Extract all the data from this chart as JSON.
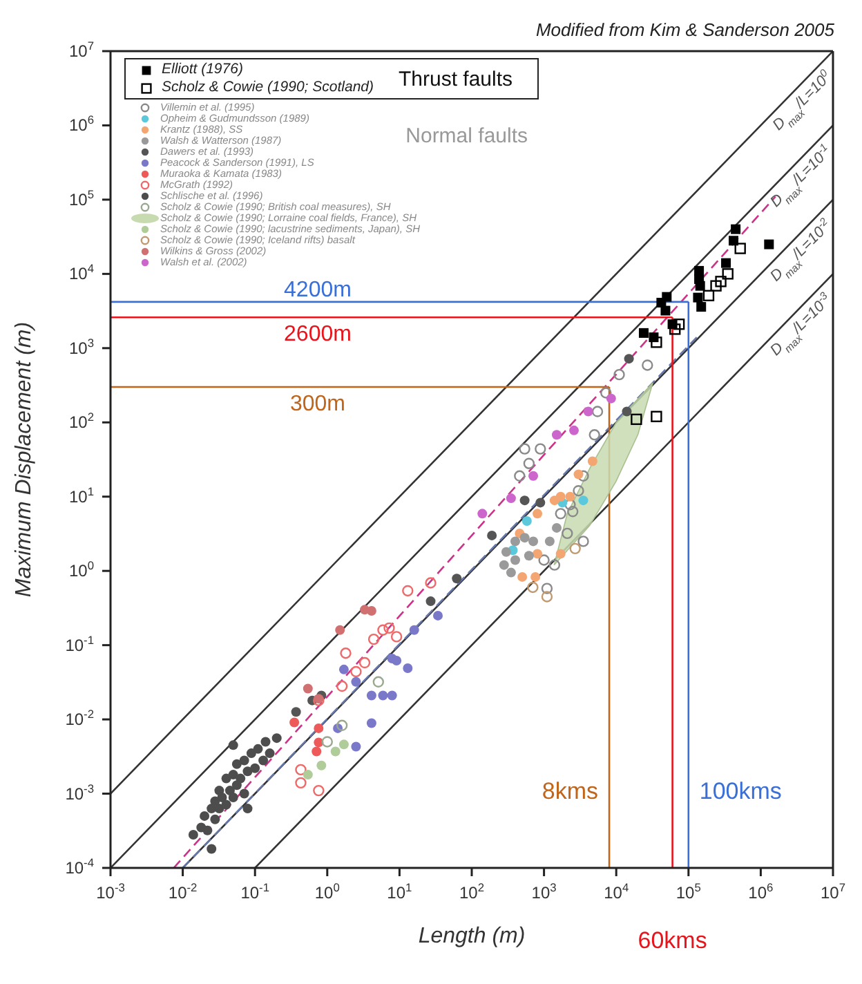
{
  "chart_data": {
    "type": "scatter",
    "xlabel": "Length (m)",
    "ylabel": "Maximum Displacement (m)",
    "log": "xy",
    "legend": "top left",
    "xlim": [
      0.001,
      10000000
    ],
    "ylim": [
      0.0001,
      10000000
    ],
    "xticks": [
      {
        "value": 0.001,
        "label": "10$^{-3}$"
      },
      {
        "value": 0.01,
        "label": "10$^{-2}$"
      },
      {
        "value": 0.1,
        "label": "10$^{-1}$"
      },
      {
        "value": 1,
        "label": "10$^{0}$"
      },
      {
        "value": 10,
        "label": "10$^{1}$"
      },
      {
        "value": 100,
        "label": "10$^{2}$"
      },
      {
        "value": 1000,
        "label": "10$^{3}$"
      },
      {
        "value": 10000,
        "label": "10$^{4}$"
      },
      {
        "value": 100000,
        "label": "10$^{5}$"
      },
      {
        "value": 1000000,
        "label": "10$^{6}$"
      },
      {
        "value": 10000000,
        "label": "10$^{7}$"
      }
    ],
    "yticks": [
      {
        "value": 0.0001,
        "label": "10$^{-4}$"
      },
      {
        "value": 0.001,
        "label": "10$^{-3}$"
      },
      {
        "value": 0.01,
        "label": "10$^{-2}$"
      },
      {
        "value": 0.1,
        "label": "10$^{-1}$"
      },
      {
        "value": 1,
        "label": "10$^{0}$"
      },
      {
        "value": 10,
        "label": "10$^{1}$"
      },
      {
        "value": 100,
        "label": "10$^{2}$"
      },
      {
        "value": 1000,
        "label": "10$^{3}$"
      },
      {
        "value": 10000,
        "label": "10$^{4}$"
      },
      {
        "value": 100000,
        "label": "10$^{5}$"
      },
      {
        "value": 1000000,
        "label": "10$^{6}$"
      },
      {
        "value": 10000000,
        "label": "10$^{7}$"
      }
    ],
    "annotations": [
      "Modified from Kim & Sanderson 2005",
      "Thrust faults",
      "Normal faults"
    ],
    "series": [
      {
        "name": "Elliott (1976)",
        "color": "#000000",
        "marker": "square",
        "x": [
          450000,
          420000,
          1300000,
          330000,
          140000,
          140000,
          145000,
          135000,
          150000,
          50000,
          42000,
          48000,
          60000,
          24000,
          33000
        ],
        "values": [
          40000,
          28000,
          25000,
          14000,
          11000,
          8500,
          6900,
          4800,
          3600,
          4900,
          4100,
          3200,
          2100,
          1600,
          1400
        ]
      },
      {
        "name": "Scholz & Cowie (1990; Scotland)",
        "color": "#000000",
        "marker": "square",
        "x": [
          520000,
          350000,
          280000,
          240000,
          190000,
          74000,
          65000,
          36000,
          36000,
          19000
        ],
        "values": [
          22000,
          10000,
          7900,
          6900,
          5100,
          2100,
          1800,
          1200,
          120,
          110
        ]
      },
      {
        "name": "Villemin et al. (1995)",
        "color": "#8a8a8a",
        "marker": "circle",
        "x": [
          460,
          620,
          890,
          1700,
          2300,
          3000,
          3500,
          5000,
          5500,
          7200,
          11000,
          27000,
          1000,
          1400,
          1100,
          3500,
          2100,
          2500,
          540
        ],
        "values": [
          19,
          28,
          44,
          5.9,
          7.8,
          12,
          19,
          68,
          140,
          250,
          440,
          590,
          1.4,
          1.2,
          0.58,
          2.5,
          3.2,
          6.3,
          44
        ]
      },
      {
        "name": "Opheim & Gudmundsson (1989)",
        "color": "#5bc8dc",
        "marker": "circle",
        "x": [
          370,
          1800,
          3500,
          580
        ],
        "values": [
          1.9,
          8.3,
          8.9,
          4.7
        ]
      },
      {
        "name": "Krantz (1988), SS",
        "color": "#f4a672",
        "marker": "circle",
        "x": [
          810,
          1400,
          1700,
          2300,
          3000,
          4700,
          810,
          1700,
          760,
          500,
          460
        ],
        "values": [
          5.9,
          8.9,
          10,
          10,
          20,
          30,
          1.7,
          1.7,
          0.83,
          0.83,
          3.2
        ]
      },
      {
        "name": "Walsh & Watterson (1987)",
        "color": "#9a9a9a",
        "marker": "circle",
        "x": [
          300,
          400,
          280,
          540,
          710,
          400,
          620,
          350,
          1500,
          1200
        ],
        "values": [
          1.8,
          1.4,
          1.2,
          2.8,
          2.5,
          2.5,
          1.6,
          0.95,
          3.8,
          2.5
        ]
      },
      {
        "name": "Dawers et al. (1993)",
        "color": "#555555",
        "marker": "circle",
        "x": [
          0.37,
          0.62,
          0.83,
          27,
          62,
          190,
          540,
          890,
          15000,
          14000
        ],
        "values": [
          0.0126,
          0.018,
          0.021,
          0.39,
          0.79,
          3.0,
          8.9,
          8.3,
          720,
          140
        ]
      },
      {
        "name": "Peacock & Sanderson (1991), LS",
        "color": "#7a78c8",
        "marker": "circle",
        "x": [
          1.7,
          2.5,
          4.1,
          5.9,
          7.9,
          9.1,
          13,
          4.1,
          2.5,
          16,
          34,
          1.4,
          7.9
        ],
        "values": [
          0.047,
          0.032,
          0.021,
          0.021,
          0.021,
          0.062,
          0.049,
          0.0089,
          0.0043,
          0.16,
          0.25,
          0.0076,
          0.066
        ]
      },
      {
        "name": "Muraoka & Kamata (1983)",
        "color": "#ee5a5a",
        "marker": "circle",
        "x": [
          0.35,
          0.76,
          0.71,
          0.76
        ],
        "values": [
          0.0091,
          0.0076,
          0.0037,
          0.0049
        ]
      },
      {
        "name": "McGrath (1992)",
        "color": "#ee6a6a",
        "marker": "circle",
        "x": [
          0.43,
          0.76,
          1.8,
          2.5,
          3.3,
          4.4,
          5.9,
          7.2,
          9.1,
          13,
          27,
          1.6,
          0.76,
          0.43
        ],
        "values": [
          0.0014,
          0.0011,
          0.078,
          0.044,
          0.058,
          0.12,
          0.16,
          0.17,
          0.13,
          0.54,
          0.69,
          0.028,
          0.018,
          0.0021
        ]
      },
      {
        "name": "Schlische et al. (1996)",
        "color": "#4d4d4d",
        "marker": "circle",
        "x": [
          0.014,
          0.018,
          0.02,
          0.022,
          0.025,
          0.028,
          0.028,
          0.032,
          0.032,
          0.035,
          0.04,
          0.04,
          0.045,
          0.05,
          0.05,
          0.056,
          0.056,
          0.063,
          0.071,
          0.071,
          0.079,
          0.089,
          0.1,
          0.11,
          0.13,
          0.14,
          0.16,
          0.2,
          0.05,
          0.025,
          0.079
        ],
        "values": [
          0.00028,
          0.00035,
          0.0005,
          0.00032,
          0.00063,
          0.00079,
          0.00045,
          0.0011,
          0.00063,
          0.00089,
          0.0016,
          0.00071,
          0.0011,
          0.0018,
          0.00089,
          0.0025,
          0.0013,
          0.0016,
          0.0028,
          0.001,
          0.002,
          0.0035,
          0.0022,
          0.004,
          0.0028,
          0.005,
          0.0035,
          0.0056,
          0.0045,
          0.00018,
          0.00063
        ]
      },
      {
        "name": "Scholz & Cowie (1990; British coal measures), SH",
        "color": "#9aa890",
        "marker": "circle",
        "x": [
          5.1,
          1.6,
          1.0
        ],
        "values": [
          0.032,
          0.0083,
          0.005
        ]
      },
      {
        "name": "Scholz & Cowie (1990; Lorraine coal fields, France), SH",
        "color": "#c8dab0",
        "type": "area",
        "x": [
          1380,
          4300,
          9900,
          20000,
          32000,
          10000,
          4400,
          2100,
          1380
        ],
        "values": [
          1.2,
          4.1,
          16,
          69,
          340,
          100,
          25,
          5.9,
          1.2
        ]
      },
      {
        "name": "Scholz & Cowie (1990; lacustrine sediments, Japan), SH",
        "color": "#b0cc98",
        "marker": "circle",
        "x": [
          0.83,
          1.3,
          1.7,
          0.54
        ],
        "values": [
          0.0024,
          0.0037,
          0.0046,
          0.0018
        ]
      },
      {
        "name": "Scholz & Cowie (1990; Iceland rifts) basalt",
        "color": "#c09a70",
        "marker": "circle",
        "x": [
          1100,
          2700,
          700
        ],
        "values": [
          0.45,
          2.0,
          0.6
        ]
      },
      {
        "name": "Wilkins & Gross (2002)",
        "color": "#d07070",
        "marker": "circle",
        "x": [
          3.3,
          4.1,
          1.5,
          0.54,
          0.76
        ],
        "values": [
          0.3,
          0.29,
          0.16,
          0.026,
          0.019
        ]
      },
      {
        "name": "Walsh et al. (2002)",
        "color": "#cc66cc",
        "marker": "circle",
        "x": [
          350,
          710,
          1500,
          2600,
          4100,
          8500,
          140
        ],
        "values": [
          9.5,
          19,
          68,
          78,
          140,
          210,
          5.9
        ]
      },
      {
        "name": "D$_{max}$/L=10$^{0}$",
        "color": "#333333",
        "type": "line",
        "x": [
          0.001,
          10000000
        ],
        "values": [
          0.001,
          10000000
        ]
      },
      {
        "name": "D$_{max}$/L=10$^{-1}$",
        "color": "#333333",
        "type": "line",
        "x": [
          0.001,
          10000000
        ],
        "values": [
          0.0001,
          1000000
        ]
      },
      {
        "name": "D$_{max}$/L=10$^{-2}$",
        "color": "#333333",
        "type": "line",
        "x": [
          0.01,
          10000000
        ],
        "values": [
          0.0001,
          100000
        ]
      },
      {
        "name": "D$_{max}$/L=10$^{-3}$",
        "color": "#333333",
        "type": "line",
        "x": [
          0.1,
          10000000
        ],
        "values": [
          0.0001,
          10000
        ]
      },
      {
        "color": "#cc3388",
        "type": "line",
        "line_style": "dashed",
        "x": [
          0.0075,
          1600000
        ],
        "values": [
          0.0001,
          110000
        ]
      },
      {
        "color": "#6677aa",
        "type": "line",
        "line_style": "dashed",
        "x": [
          0.01,
          130000
        ],
        "values": [
          0.0001,
          1400
        ]
      },
      {
        "name": "4200m",
        "color": "#3a6fd8",
        "type": "line",
        "x": [
          0.001,
          100000
        ],
        "values": [
          4200,
          4200
        ]
      },
      {
        "name": "100kms",
        "color": "#3a6fd8",
        "type": "line",
        "x": [
          100000,
          100000
        ],
        "values": [
          4200,
          0.0001
        ]
      },
      {
        "name": "2600m",
        "color": "#e8141c",
        "type": "line",
        "x": [
          0.001,
          60000
        ],
        "values": [
          2600,
          2600
        ]
      },
      {
        "name": "60kms",
        "color": "#e8141c",
        "type": "line",
        "x": [
          60000,
          60000
        ],
        "values": [
          2600,
          0.0001
        ]
      },
      {
        "name": "300m",
        "color": "#c0651a",
        "type": "line",
        "x": [
          0.001,
          8000
        ],
        "values": [
          300,
          300
        ]
      },
      {
        "name": "8kms",
        "color": "#c0651a",
        "type": "line",
        "x": [
          8000,
          8000
        ],
        "values": [
          300,
          0.0001
        ]
      }
    ]
  }
}
